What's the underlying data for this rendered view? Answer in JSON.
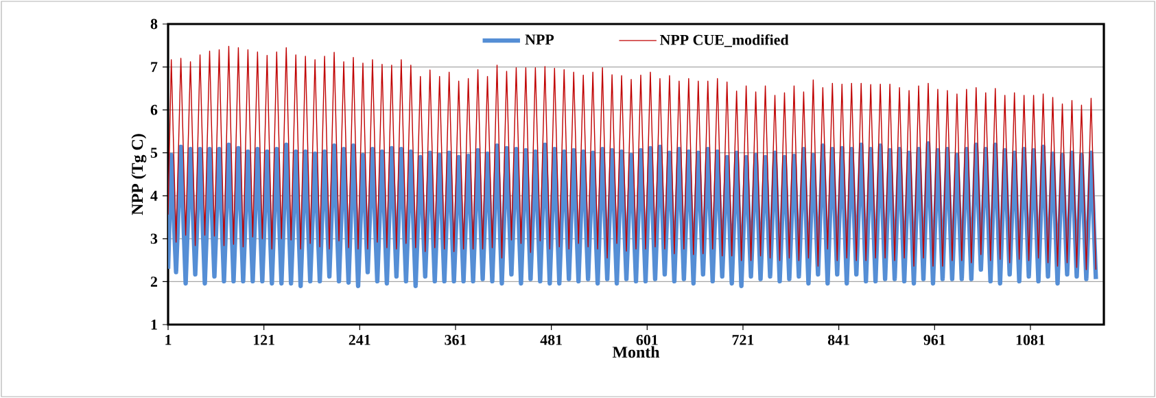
{
  "chart_data": {
    "type": "line",
    "xlabel": "Month",
    "ylabel": "NPP (Tg C)",
    "xlim": [
      1,
      1173
    ],
    "ylim": [
      1,
      8
    ],
    "xticks": [
      1,
      121,
      241,
      361,
      481,
      601,
      721,
      841,
      961,
      1081
    ],
    "yticks": [
      1,
      2,
      3,
      4,
      5,
      6,
      7,
      8
    ],
    "grid": "y",
    "legend": "top",
    "x": [
      1,
      5,
      11,
      17,
      23,
      29,
      35,
      41,
      47,
      53,
      59,
      65,
      71,
      77,
      83,
      89,
      95,
      101,
      107,
      113,
      119,
      125,
      131,
      137,
      143,
      149,
      155,
      161,
      167,
      173,
      179,
      185,
      191,
      197,
      203,
      209,
      215,
      221,
      227,
      233,
      239,
      245,
      251,
      257,
      263,
      269,
      275,
      281,
      287,
      293,
      299,
      305,
      311,
      317,
      323,
      329,
      335,
      341,
      347,
      353,
      359,
      365,
      371,
      377,
      383,
      389,
      395,
      401,
      407,
      413,
      419,
      425,
      431,
      437,
      443,
      449,
      455,
      461,
      467,
      473,
      479,
      485,
      491,
      497,
      503,
      509,
      515,
      521,
      527,
      533,
      539,
      545,
      551,
      557,
      563,
      569,
      575,
      581,
      587,
      593,
      599,
      605,
      611,
      617,
      623,
      629,
      635,
      641,
      647,
      653,
      659,
      665,
      671,
      677,
      683,
      689,
      695,
      701,
      707,
      713,
      719,
      725,
      731,
      737,
      743,
      749,
      755,
      761,
      767,
      773,
      779,
      785,
      791,
      797,
      803,
      809,
      815,
      821,
      827,
      833,
      839,
      845,
      851,
      857,
      863,
      869,
      875,
      881,
      887,
      893,
      899,
      905,
      911,
      917,
      923,
      929,
      935,
      941,
      947,
      953,
      959,
      965,
      971,
      977,
      983,
      989,
      995,
      1001,
      1007,
      1013,
      1019,
      1025,
      1031,
      1037,
      1043,
      1049,
      1055,
      1061,
      1067,
      1073,
      1079,
      1085,
      1091,
      1097,
      1103,
      1109,
      1115,
      1121,
      1127,
      1133,
      1139,
      1145,
      1151,
      1157,
      1163
    ],
    "series": [
      {
        "name": "NPP",
        "color": "#558ed5",
        "values": [
          2.3,
          4.95,
          2.22,
          5.14,
          1.96,
          5.09,
          2.17,
          5.09,
          1.96,
          5.09,
          2.12,
          5.09,
          2.01,
          5.19,
          2.01,
          5.11,
          2.01,
          5.03,
          2.01,
          5.09,
          2.01,
          5.03,
          1.96,
          5.09,
          1.96,
          5.19,
          1.96,
          5.03,
          1.9,
          5.03,
          2.01,
          4.98,
          2.01,
          5.03,
          2.12,
          5.17,
          2.01,
          5.09,
          1.98,
          5.17,
          1.9,
          4.95,
          2.22,
          5.09,
          2.01,
          5.03,
          1.96,
          5.11,
          2.12,
          5.09,
          2.01,
          5.03,
          1.9,
          4.9,
          2.12,
          5.0,
          2.01,
          4.95,
          2.01,
          5.0,
          2.01,
          4.9,
          2.01,
          4.93,
          2.01,
          5.06,
          2.06,
          4.98,
          2.01,
          5.17,
          1.96,
          5.11,
          2.17,
          5.09,
          1.96,
          5.06,
          2.06,
          5.03,
          2.01,
          5.19,
          1.96,
          5.09,
          1.96,
          5.03,
          2.06,
          5.06,
          2.01,
          5.03,
          2.06,
          5.0,
          1.96,
          5.09,
          2.06,
          5.06,
          1.96,
          5.03,
          2.06,
          4.95,
          2.01,
          5.06,
          2.01,
          5.11,
          2.06,
          5.14,
          2.17,
          5.0,
          2.01,
          5.09,
          2.06,
          5.03,
          1.96,
          5.0,
          2.17,
          5.09,
          2.01,
          5.03,
          2.12,
          4.9,
          1.96,
          5.0,
          1.9,
          4.9,
          2.12,
          4.95,
          2.06,
          4.9,
          2.12,
          5.0,
          2.01,
          4.9,
          2.06,
          4.93,
          2.12,
          5.09,
          1.96,
          4.95,
          2.17,
          5.17,
          1.96,
          5.09,
          2.17,
          5.11,
          1.96,
          5.09,
          2.17,
          5.19,
          2.01,
          5.09,
          2.01,
          5.17,
          2.06,
          5.06,
          2.06,
          5.09,
          2.01,
          5.0,
          1.96,
          5.09,
          2.06,
          5.22,
          1.96,
          5.06,
          2.06,
          5.09,
          2.06,
          4.95,
          2.06,
          5.09,
          2.06,
          5.19,
          2.28,
          5.09,
          2.01,
          5.19,
          1.96,
          5.06,
          2.17,
          5.0,
          2.01,
          5.09,
          2.12,
          5.06,
          2.01,
          5.14,
          2.12,
          4.98,
          1.96,
          4.95,
          2.17,
          5.0,
          2.12,
          4.95,
          2.06,
          5.0,
          2.06
        ]
      },
      {
        "name": "NPP CUE_modified",
        "color": "#c00000",
        "values": [
          3.56,
          7.17,
          2.92,
          7.2,
          3.08,
          7.12,
          2.84,
          7.28,
          3.08,
          7.37,
          3.06,
          7.4,
          2.84,
          7.48,
          2.87,
          7.45,
          2.81,
          7.4,
          3.04,
          7.35,
          3.0,
          7.27,
          2.76,
          7.35,
          3.0,
          7.45,
          2.97,
          7.28,
          2.76,
          7.25,
          2.89,
          7.17,
          2.81,
          7.25,
          2.76,
          7.34,
          2.95,
          7.12,
          2.79,
          7.22,
          2.76,
          7.09,
          2.76,
          7.17,
          2.92,
          7.06,
          2.79,
          7.04,
          2.76,
          7.17,
          2.89,
          7.04,
          2.79,
          6.78,
          2.7,
          6.93,
          2.79,
          6.78,
          2.76,
          6.88,
          2.7,
          6.67,
          2.76,
          6.73,
          2.76,
          6.94,
          2.76,
          6.78,
          2.79,
          7.04,
          2.55,
          6.9,
          2.97,
          6.98,
          2.89,
          6.98,
          2.68,
          6.98,
          2.95,
          7.01,
          2.76,
          6.97,
          2.81,
          6.94,
          2.76,
          6.88,
          2.89,
          6.81,
          2.81,
          6.88,
          2.76,
          6.98,
          2.55,
          6.82,
          2.89,
          6.8,
          2.71,
          6.71,
          2.76,
          6.81,
          2.76,
          6.88,
          2.81,
          6.73,
          2.76,
          6.8,
          2.65,
          6.67,
          2.76,
          6.73,
          2.63,
          6.67,
          2.65,
          6.67,
          2.76,
          6.73,
          2.6,
          6.65,
          2.6,
          6.44,
          2.49,
          6.56,
          2.49,
          6.42,
          2.6,
          6.56,
          2.55,
          6.34,
          2.49,
          6.4,
          2.55,
          6.56,
          2.49,
          6.42,
          2.55,
          6.7,
          2.36,
          6.52,
          2.76,
          6.62,
          2.49,
          6.6,
          2.55,
          6.62,
          2.49,
          6.62,
          2.49,
          6.59,
          2.55,
          6.6,
          2.55,
          6.6,
          2.49,
          6.52,
          2.55,
          6.45,
          2.36,
          6.56,
          2.55,
          6.62,
          2.36,
          6.48,
          2.36,
          6.45,
          2.49,
          6.37,
          2.49,
          6.48,
          2.44,
          6.52,
          2.63,
          6.4,
          2.49,
          6.5,
          2.52,
          6.34,
          2.44,
          6.4,
          2.52,
          6.34,
          2.49,
          6.34,
          2.55,
          6.37,
          2.44,
          6.29,
          2.36,
          6.14,
          2.44,
          6.22,
          2.33,
          6.11,
          2.28,
          6.27,
          2.28
        ]
      }
    ]
  }
}
